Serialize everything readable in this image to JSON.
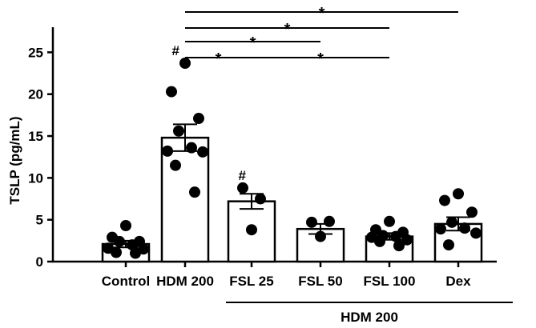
{
  "chart_data": {
    "type": "bar",
    "title": "",
    "xlabel": "",
    "ylabel": "TSLP (pg/mL)",
    "ylim": [
      0,
      28
    ],
    "yticks": [
      0,
      5,
      10,
      15,
      20,
      25
    ],
    "grid": false,
    "categories": [
      "Control",
      "HDM 200",
      "FSL 25",
      "FSL 50",
      "FSL 100",
      "Dex"
    ],
    "means": [
      2.1,
      14.8,
      7.2,
      3.9,
      3.0,
      4.5
    ],
    "sem": [
      0.4,
      1.6,
      0.9,
      0.6,
      0.4,
      0.8
    ],
    "points": [
      [
        4.3,
        2.9,
        2.4,
        2.4,
        2.0,
        1.6,
        1.5,
        1.1,
        1.0
      ],
      [
        23.7,
        20.3,
        17.1,
        15.6,
        13.6,
        13.2,
        13.1,
        11.5,
        8.3
      ],
      [
        8.8,
        7.5,
        3.8
      ],
      [
        4.7,
        4.8,
        3.0
      ],
      [
        4.8,
        3.8,
        3.5,
        3.1,
        3.0,
        2.9,
        2.6,
        2.4,
        1.9
      ],
      [
        8.1,
        7.3,
        5.9,
        4.7,
        4.0,
        3.9,
        3.4,
        2.0
      ]
    ],
    "annotations": [
      {
        "category": "HDM 200",
        "text": "#"
      },
      {
        "category": "FSL 25",
        "text": "#"
      }
    ],
    "significance": [
      {
        "from": "HDM 200",
        "to": "Dex",
        "text": "*"
      },
      {
        "from": "HDM 200",
        "to": "FSL 100",
        "text": "*"
      },
      {
        "from": "HDM 200",
        "to": "FSL 50",
        "text": "*"
      },
      {
        "from": "HDM 200",
        "to": "FSL 25",
        "text": "*"
      },
      {
        "from": "FSL 25",
        "to": "FSL 100",
        "text": "*"
      }
    ],
    "group_label": {
      "text": "HDM 200",
      "from": "FSL 25",
      "to": "Dex"
    }
  }
}
